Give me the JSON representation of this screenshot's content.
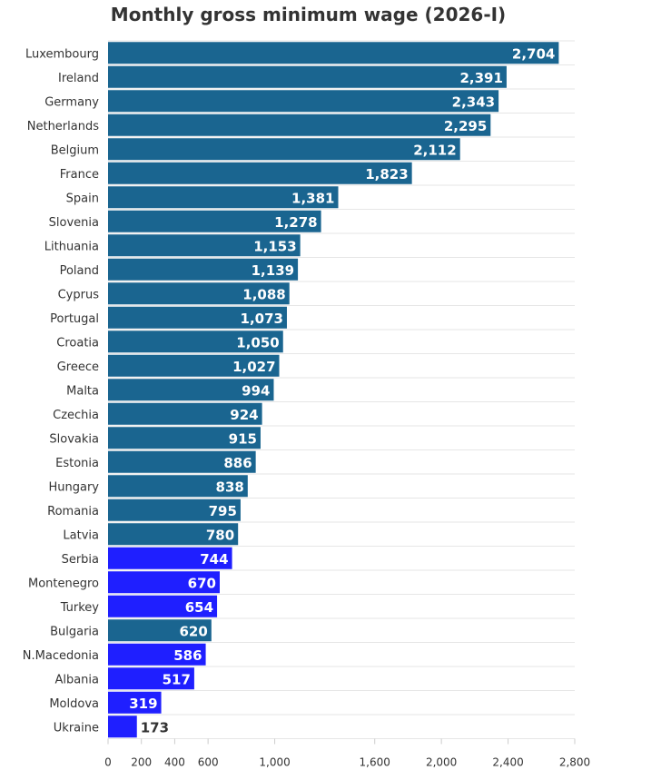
{
  "chart_data": {
    "type": "bar",
    "orientation": "horizontal",
    "title": "Monthly gross minimum wage (2026-I)",
    "xlabel": "",
    "ylabel": "",
    "xlim": [
      0,
      2800
    ],
    "ticks": [
      0,
      200,
      400,
      600,
      1000,
      1600,
      2000,
      2400,
      2800
    ],
    "tick_labels": [
      "0",
      "200",
      "400",
      "600",
      "1,000",
      "1,600",
      "2,000",
      "2,400",
      "2,800"
    ],
    "colors": {
      "eu": "#1a6590",
      "candidate": "#1f1fff",
      "grid": "#e6e6e6"
    },
    "categories": [
      "Luxembourg",
      "Ireland",
      "Germany",
      "Netherlands",
      "Belgium",
      "France",
      "Spain",
      "Slovenia",
      "Lithuania",
      "Poland",
      "Cyprus",
      "Portugal",
      "Croatia",
      "Greece",
      "Malta",
      "Czechia",
      "Slovakia",
      "Estonia",
      "Hungary",
      "Romania",
      "Latvia",
      "Serbia",
      "Montenegro",
      "Turkey",
      "Bulgaria",
      "N.Macedonia",
      "Albania",
      "Moldova",
      "Ukraine"
    ],
    "values": [
      2704,
      2391,
      2343,
      2295,
      2112,
      1823,
      1381,
      1278,
      1153,
      1139,
      1088,
      1073,
      1050,
      1027,
      994,
      924,
      915,
      886,
      838,
      795,
      780,
      744,
      670,
      654,
      620,
      586,
      517,
      319,
      173
    ],
    "value_labels": [
      "2,704",
      "2,391",
      "2,343",
      "2,295",
      "2,112",
      "1,823",
      "1,381",
      "1,278",
      "1,153",
      "1,139",
      "1,088",
      "1,073",
      "1,050",
      "1,027",
      "994",
      "924",
      "915",
      "886",
      "838",
      "795",
      "780",
      "744",
      "670",
      "654",
      "620",
      "586",
      "517",
      "319",
      "173"
    ],
    "groups": [
      "eu",
      "eu",
      "eu",
      "eu",
      "eu",
      "eu",
      "eu",
      "eu",
      "eu",
      "eu",
      "eu",
      "eu",
      "eu",
      "eu",
      "eu",
      "eu",
      "eu",
      "eu",
      "eu",
      "eu",
      "eu",
      "candidate",
      "candidate",
      "candidate",
      "eu",
      "candidate",
      "candidate",
      "candidate",
      "candidate"
    ]
  }
}
